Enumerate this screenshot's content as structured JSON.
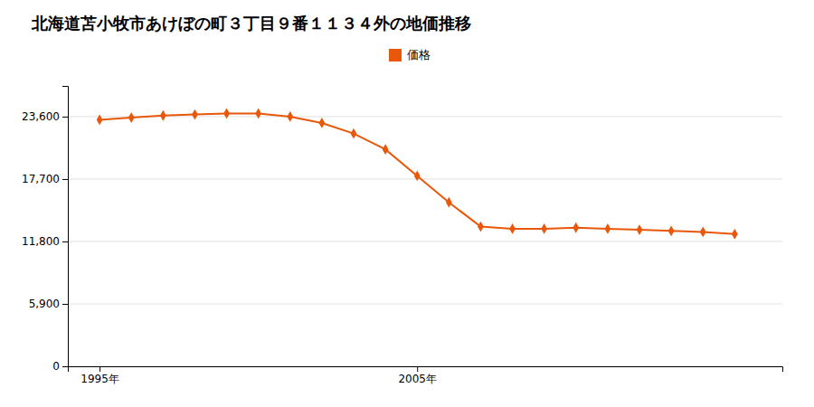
{
  "chart_data": {
    "type": "line",
    "title": "北海道苫小牧市あけぼの町３丁目９番１１３４外の地価推移",
    "x": [
      1995,
      1996,
      1997,
      1998,
      1999,
      2000,
      2001,
      2002,
      2003,
      2004,
      2005,
      2006,
      2007,
      2008,
      2009,
      2010,
      2011,
      2012,
      2013,
      2014,
      2015
    ],
    "series": [
      {
        "name": "価格",
        "color": "#e8570a",
        "marker": "diamond",
        "values": [
          23300,
          23500,
          23700,
          23800,
          23900,
          23900,
          23600,
          23000,
          22000,
          20500,
          18000,
          15500,
          13200,
          13000,
          13000,
          13100,
          13000,
          12900,
          12800,
          12700,
          12500
        ]
      }
    ],
    "xlim": [
      1994.0,
      2016.5
    ],
    "xticks": [
      {
        "value": 1995,
        "label": "1995年"
      },
      {
        "value": 2005,
        "label": "2005年"
      }
    ],
    "ylim": [
      0,
      26500
    ],
    "yticks": [
      0,
      {
        "value": 5900,
        "label": "5,900"
      },
      {
        "value": 11800,
        "label": "11,800"
      },
      {
        "value": 17700,
        "label": "17,700"
      },
      {
        "value": 23600,
        "label": "23,600"
      }
    ],
    "grid": true,
    "legend": "top"
  }
}
